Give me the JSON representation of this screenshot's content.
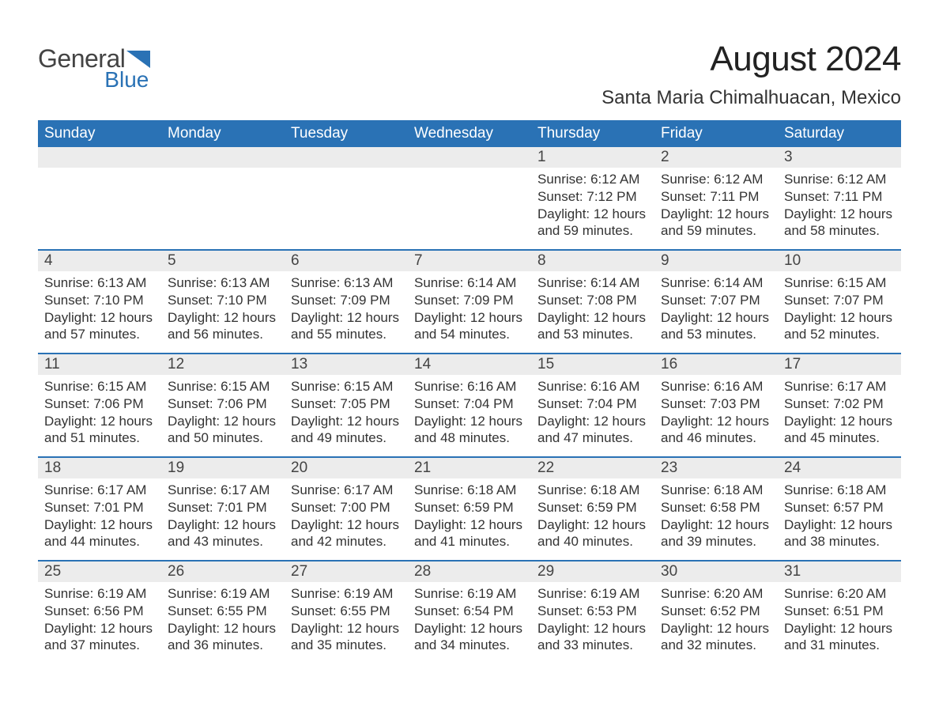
{
  "brand": {
    "text_general": "General",
    "text_blue": "Blue",
    "triangle_color": "#2a72b5"
  },
  "header": {
    "month_title": "August 2024",
    "location": "Santa Maria Chimalhuacan, Mexico"
  },
  "calendar": {
    "type": "table",
    "header_bg": "#2a72b5",
    "header_fg": "#ffffff",
    "day_number_bg": "#ececec",
    "week_divider_color": "#2a72b5",
    "body_text_color": "#333333",
    "background_color": "#ffffff",
    "header_fontsize": 19,
    "body_fontsize": 17,
    "day_names": [
      "Sunday",
      "Monday",
      "Tuesday",
      "Wednesday",
      "Thursday",
      "Friday",
      "Saturday"
    ],
    "weeks": [
      [
        null,
        null,
        null,
        null,
        {
          "day": "1",
          "sunrise": "6:12 AM",
          "sunset": "7:12 PM",
          "daylight": "12 hours and 59 minutes."
        },
        {
          "day": "2",
          "sunrise": "6:12 AM",
          "sunset": "7:11 PM",
          "daylight": "12 hours and 59 minutes."
        },
        {
          "day": "3",
          "sunrise": "6:12 AM",
          "sunset": "7:11 PM",
          "daylight": "12 hours and 58 minutes."
        }
      ],
      [
        {
          "day": "4",
          "sunrise": "6:13 AM",
          "sunset": "7:10 PM",
          "daylight": "12 hours and 57 minutes."
        },
        {
          "day": "5",
          "sunrise": "6:13 AM",
          "sunset": "7:10 PM",
          "daylight": "12 hours and 56 minutes."
        },
        {
          "day": "6",
          "sunrise": "6:13 AM",
          "sunset": "7:09 PM",
          "daylight": "12 hours and 55 minutes."
        },
        {
          "day": "7",
          "sunrise": "6:14 AM",
          "sunset": "7:09 PM",
          "daylight": "12 hours and 54 minutes."
        },
        {
          "day": "8",
          "sunrise": "6:14 AM",
          "sunset": "7:08 PM",
          "daylight": "12 hours and 53 minutes."
        },
        {
          "day": "9",
          "sunrise": "6:14 AM",
          "sunset": "7:07 PM",
          "daylight": "12 hours and 53 minutes."
        },
        {
          "day": "10",
          "sunrise": "6:15 AM",
          "sunset": "7:07 PM",
          "daylight": "12 hours and 52 minutes."
        }
      ],
      [
        {
          "day": "11",
          "sunrise": "6:15 AM",
          "sunset": "7:06 PM",
          "daylight": "12 hours and 51 minutes."
        },
        {
          "day": "12",
          "sunrise": "6:15 AM",
          "sunset": "7:06 PM",
          "daylight": "12 hours and 50 minutes."
        },
        {
          "day": "13",
          "sunrise": "6:15 AM",
          "sunset": "7:05 PM",
          "daylight": "12 hours and 49 minutes."
        },
        {
          "day": "14",
          "sunrise": "6:16 AM",
          "sunset": "7:04 PM",
          "daylight": "12 hours and 48 minutes."
        },
        {
          "day": "15",
          "sunrise": "6:16 AM",
          "sunset": "7:04 PM",
          "daylight": "12 hours and 47 minutes."
        },
        {
          "day": "16",
          "sunrise": "6:16 AM",
          "sunset": "7:03 PM",
          "daylight": "12 hours and 46 minutes."
        },
        {
          "day": "17",
          "sunrise": "6:17 AM",
          "sunset": "7:02 PM",
          "daylight": "12 hours and 45 minutes."
        }
      ],
      [
        {
          "day": "18",
          "sunrise": "6:17 AM",
          "sunset": "7:01 PM",
          "daylight": "12 hours and 44 minutes."
        },
        {
          "day": "19",
          "sunrise": "6:17 AM",
          "sunset": "7:01 PM",
          "daylight": "12 hours and 43 minutes."
        },
        {
          "day": "20",
          "sunrise": "6:17 AM",
          "sunset": "7:00 PM",
          "daylight": "12 hours and 42 minutes."
        },
        {
          "day": "21",
          "sunrise": "6:18 AM",
          "sunset": "6:59 PM",
          "daylight": "12 hours and 41 minutes."
        },
        {
          "day": "22",
          "sunrise": "6:18 AM",
          "sunset": "6:59 PM",
          "daylight": "12 hours and 40 minutes."
        },
        {
          "day": "23",
          "sunrise": "6:18 AM",
          "sunset": "6:58 PM",
          "daylight": "12 hours and 39 minutes."
        },
        {
          "day": "24",
          "sunrise": "6:18 AM",
          "sunset": "6:57 PM",
          "daylight": "12 hours and 38 minutes."
        }
      ],
      [
        {
          "day": "25",
          "sunrise": "6:19 AM",
          "sunset": "6:56 PM",
          "daylight": "12 hours and 37 minutes."
        },
        {
          "day": "26",
          "sunrise": "6:19 AM",
          "sunset": "6:55 PM",
          "daylight": "12 hours and 36 minutes."
        },
        {
          "day": "27",
          "sunrise": "6:19 AM",
          "sunset": "6:55 PM",
          "daylight": "12 hours and 35 minutes."
        },
        {
          "day": "28",
          "sunrise": "6:19 AM",
          "sunset": "6:54 PM",
          "daylight": "12 hours and 34 minutes."
        },
        {
          "day": "29",
          "sunrise": "6:19 AM",
          "sunset": "6:53 PM",
          "daylight": "12 hours and 33 minutes."
        },
        {
          "day": "30",
          "sunrise": "6:20 AM",
          "sunset": "6:52 PM",
          "daylight": "12 hours and 32 minutes."
        },
        {
          "day": "31",
          "sunrise": "6:20 AM",
          "sunset": "6:51 PM",
          "daylight": "12 hours and 31 minutes."
        }
      ]
    ],
    "labels": {
      "sunrise_prefix": "Sunrise: ",
      "sunset_prefix": "Sunset: ",
      "daylight_prefix": "Daylight: "
    }
  }
}
